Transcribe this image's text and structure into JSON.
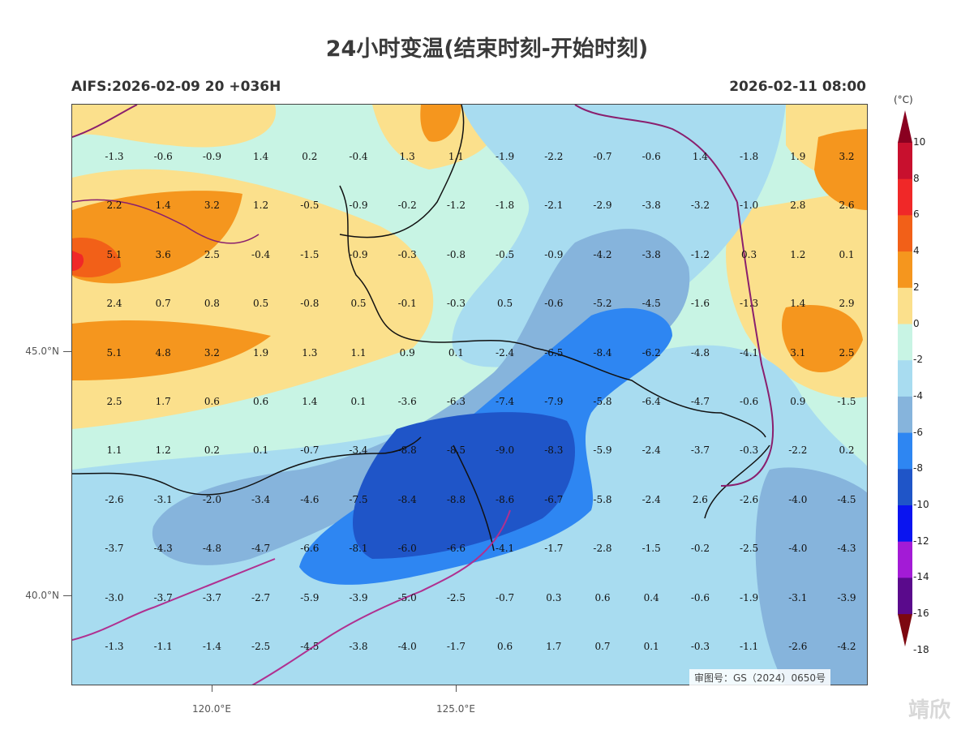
{
  "title": "24小时变温(结束时刻-开始时刻)",
  "subtitle_left": "AIFS:2026-02-09 20 +036H",
  "subtitle_right": "2026-02-11 08:00",
  "lat_labels": [
    "45.0°N",
    "40.0°N"
  ],
  "lon_labels": [
    "120.0°E",
    "125.0°E"
  ],
  "stamp": "审图号：GS（2024）0650号",
  "watermark": "靖欣",
  "colorbar": {
    "unit": "(°C)",
    "labels": [
      "10",
      "8",
      "6",
      "4",
      "2",
      "0",
      "-2",
      "-4",
      "-6",
      "-8",
      "-10",
      "-12",
      "-14",
      "-16",
      "-18"
    ],
    "colors": [
      "#8a0020",
      "#c8102e",
      "#f02828",
      "#f26018",
      "#f5961e",
      "#fbe08c",
      "#c8f4e4",
      "#a8dcf0",
      "#86b4dc",
      "#2e86f2",
      "#1f55c8",
      "#0a14f0",
      "#a31bd6",
      "#5a0a8c",
      "#7d0810"
    ]
  },
  "grid_values": [
    [
      "-1.3",
      "-0.6",
      "-0.9",
      "1.4",
      "0.2",
      "-0.4",
      "1.3",
      "1.1",
      "-1.9",
      "-2.2",
      "-0.7",
      "-0.6",
      "1.4",
      "-1.8",
      "1.9",
      "3.2"
    ],
    [
      "2.2",
      "1.4",
      "3.2",
      "1.2",
      "-0.5",
      "-0.9",
      "-0.2",
      "-1.2",
      "-1.8",
      "-2.1",
      "-2.9",
      "-3.8",
      "-3.2",
      "-1.0",
      "2.8",
      "2.6"
    ],
    [
      "5.1",
      "3.6",
      "2.5",
      "-0.4",
      "-1.5",
      "-0.9",
      "-0.3",
      "-0.8",
      "-0.5",
      "-0.9",
      "-4.2",
      "-3.8",
      "-1.2",
      "0.3",
      "1.2",
      "0.1"
    ],
    [
      "2.4",
      "0.7",
      "0.8",
      "0.5",
      "-0.8",
      "0.5",
      "-0.1",
      "-0.3",
      "0.5",
      "-0.6",
      "-5.2",
      "-4.5",
      "-1.6",
      "-1.3",
      "1.4",
      "2.9"
    ],
    [
      "5.1",
      "4.8",
      "3.2",
      "1.9",
      "1.3",
      "1.1",
      "0.9",
      "0.1",
      "-2.4",
      "-6.5",
      "-8.4",
      "-6.2",
      "-4.8",
      "-4.1",
      "3.1",
      "2.5"
    ],
    [
      "2.5",
      "1.7",
      "0.6",
      "0.6",
      "1.4",
      "0.1",
      "-3.6",
      "-6.3",
      "-7.4",
      "-7.9",
      "-5.8",
      "-6.4",
      "-4.7",
      "-0.6",
      "0.9",
      "-1.5"
    ],
    [
      "1.1",
      "1.2",
      "0.2",
      "0.1",
      "-0.7",
      "-3.4",
      "-8.8",
      "-8.5",
      "-9.0",
      "-8.3",
      "-5.9",
      "-2.4",
      "-3.7",
      "-0.3",
      "-2.2",
      "0.2"
    ],
    [
      "-2.6",
      "-3.1",
      "-2.0",
      "-3.4",
      "-4.6",
      "-7.5",
      "-8.4",
      "-8.8",
      "-8.6",
      "-6.7",
      "-5.8",
      "-2.4",
      "2.6",
      "-2.6",
      "-4.0",
      "-4.5"
    ],
    [
      "-3.7",
      "-4.3",
      "-4.8",
      "-4.7",
      "-6.6",
      "-8.1",
      "-6.0",
      "-6.6",
      "-4.1",
      "-1.7",
      "-2.8",
      "-1.5",
      "-0.2",
      "-2.5",
      "-4.0",
      "-4.3"
    ],
    [
      "-3.0",
      "-3.7",
      "-3.7",
      "-2.7",
      "-5.9",
      "-3.9",
      "-5.0",
      "-2.5",
      "-0.7",
      "0.3",
      "0.6",
      "0.4",
      "-0.6",
      "-1.9",
      "-3.1",
      "-3.9"
    ],
    [
      "-1.3",
      "-1.1",
      "-1.4",
      "-2.5",
      "-4.5",
      "-3.8",
      "-4.0",
      "-1.7",
      "0.6",
      "1.7",
      "0.7",
      "0.1",
      "-0.3",
      "-1.1",
      "-2.6",
      "-4.2"
    ]
  ]
}
